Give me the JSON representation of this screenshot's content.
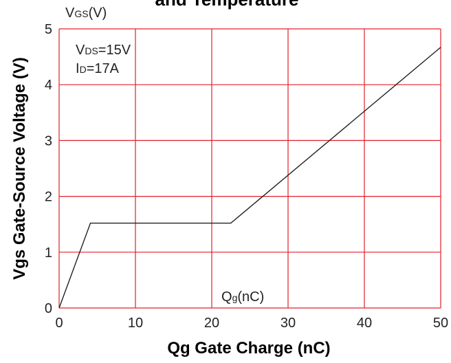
{
  "chart_data": {
    "type": "line",
    "title": "and Temperature",
    "xlabel": "Qg Gate Charge (nC)",
    "ylabel": "Vgs Gate-Source Voltage (V)",
    "xlim": [
      0,
      50
    ],
    "ylim": [
      0,
      5
    ],
    "x_ticks": [
      "0",
      "10",
      "20",
      "30",
      "40",
      "50"
    ],
    "y_ticks": [
      "0",
      "1",
      "2",
      "3",
      "4",
      "5"
    ],
    "grid": true,
    "legend": "none",
    "series": [
      {
        "x": [
          0,
          4.1,
          22.5,
          50
        ],
        "y": [
          0,
          1.52,
          1.52,
          4.67
        ]
      }
    ],
    "annotations": {
      "vgs_unit": {
        "main": "V",
        "sub": "GS",
        "rest": "(V)"
      },
      "vds": {
        "main": "V",
        "sub": "DS",
        "rest": "=15V"
      },
      "id": {
        "main": "I",
        "sub": "D",
        "rest": "=17A"
      },
      "qg_unit": {
        "main": "Q",
        "sub": "g",
        "rest": "(nC)"
      }
    },
    "colors": {
      "grid": "#e0202a",
      "line": "#222222",
      "text": "#222222"
    }
  }
}
